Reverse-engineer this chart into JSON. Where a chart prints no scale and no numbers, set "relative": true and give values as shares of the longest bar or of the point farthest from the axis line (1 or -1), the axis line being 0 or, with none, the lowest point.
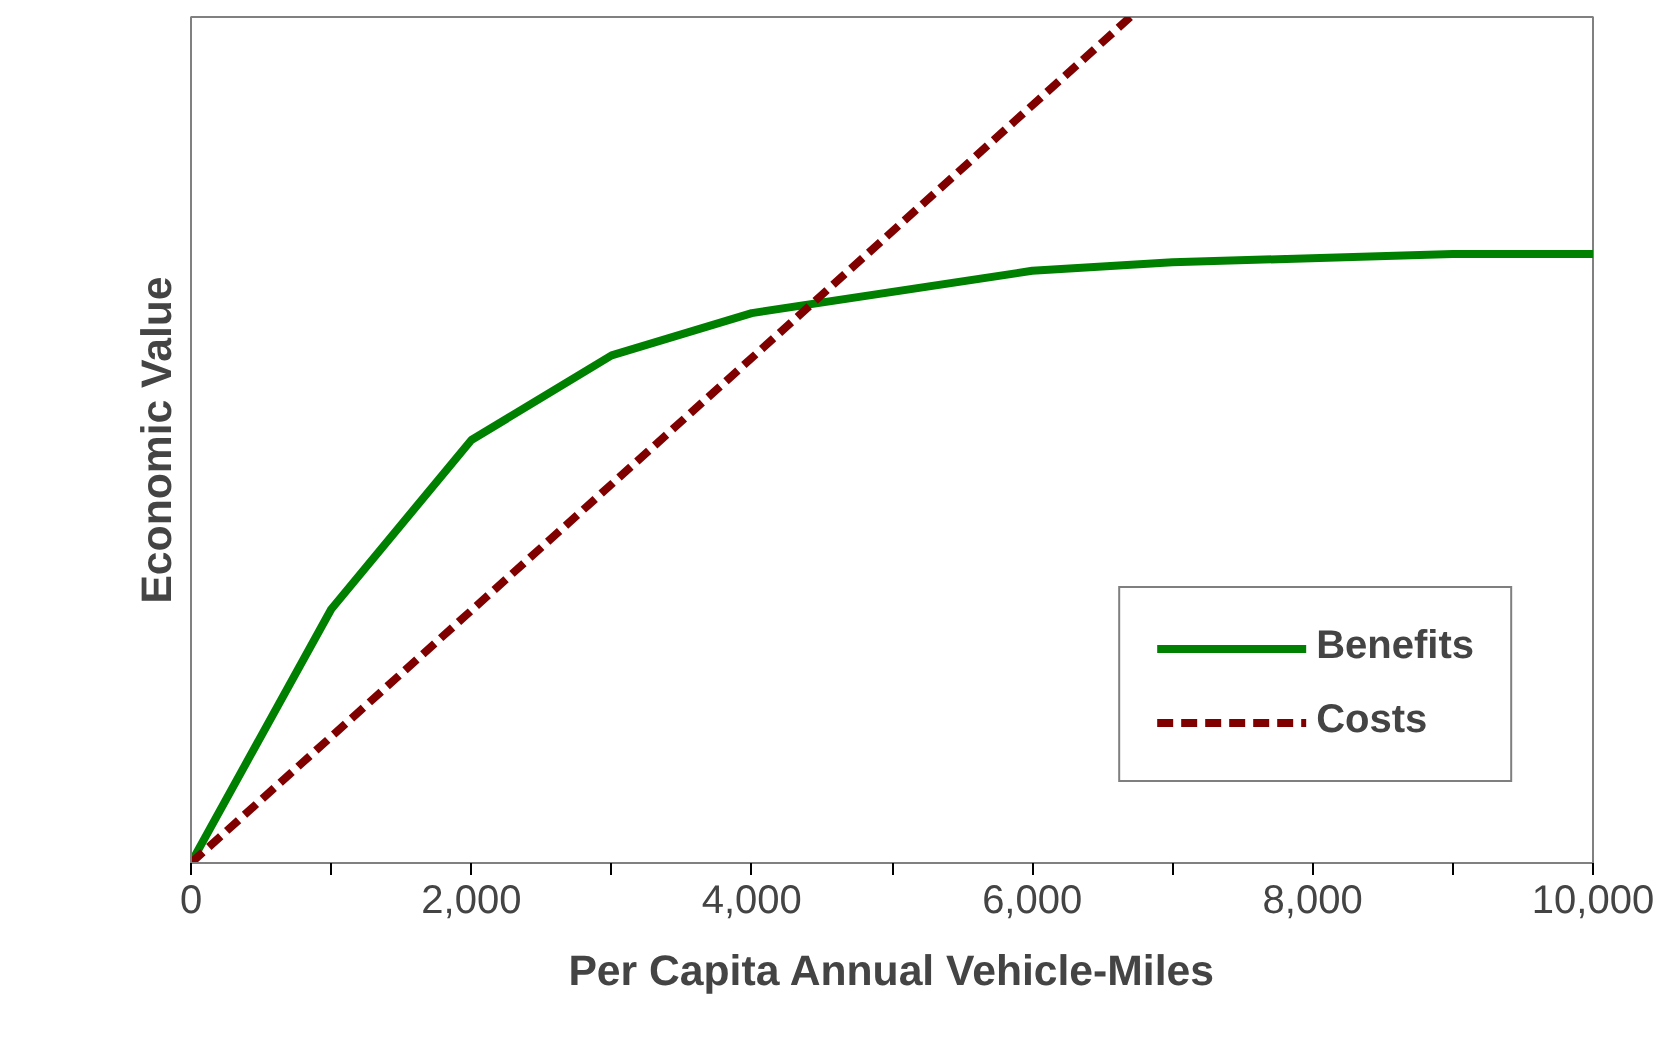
{
  "chart_data": {
    "type": "line",
    "xlabel": "Per Capita Annual Vehicle-Miles",
    "ylabel": "Economic Value",
    "relative": true,
    "xlim": [
      0,
      10000
    ],
    "xticks": [
      0,
      {
        "value": 1000,
        "label": null
      },
      {
        "value": 2000,
        "label": "2,000"
      },
      {
        "value": 3000,
        "label": null
      },
      {
        "value": 4000,
        "label": "4,000"
      },
      {
        "value": 5000,
        "label": null
      },
      {
        "value": 6000,
        "label": "6,000"
      },
      {
        "value": 7000,
        "label": null
      },
      {
        "value": 8000,
        "label": "8,000"
      },
      {
        "value": 9000,
        "label": null
      },
      {
        "value": 10000,
        "label": "10,000"
      }
    ],
    "legend": "bottom right",
    "series": [
      {
        "name": "Benefits",
        "color": "#008000",
        "line_style": "solid",
        "x": [
          0,
          1000,
          2000,
          3000,
          4000,
          6000,
          7000,
          9000,
          10000
        ],
        "values": [
          0,
          0.3,
          0.5,
          0.6,
          0.65,
          0.7,
          0.71,
          0.72,
          0.72
        ]
      },
      {
        "name": "Costs",
        "color": "#800000",
        "line_style": "dashed",
        "x": [
          0,
          6700
        ],
        "values": [
          0,
          1
        ]
      }
    ]
  }
}
